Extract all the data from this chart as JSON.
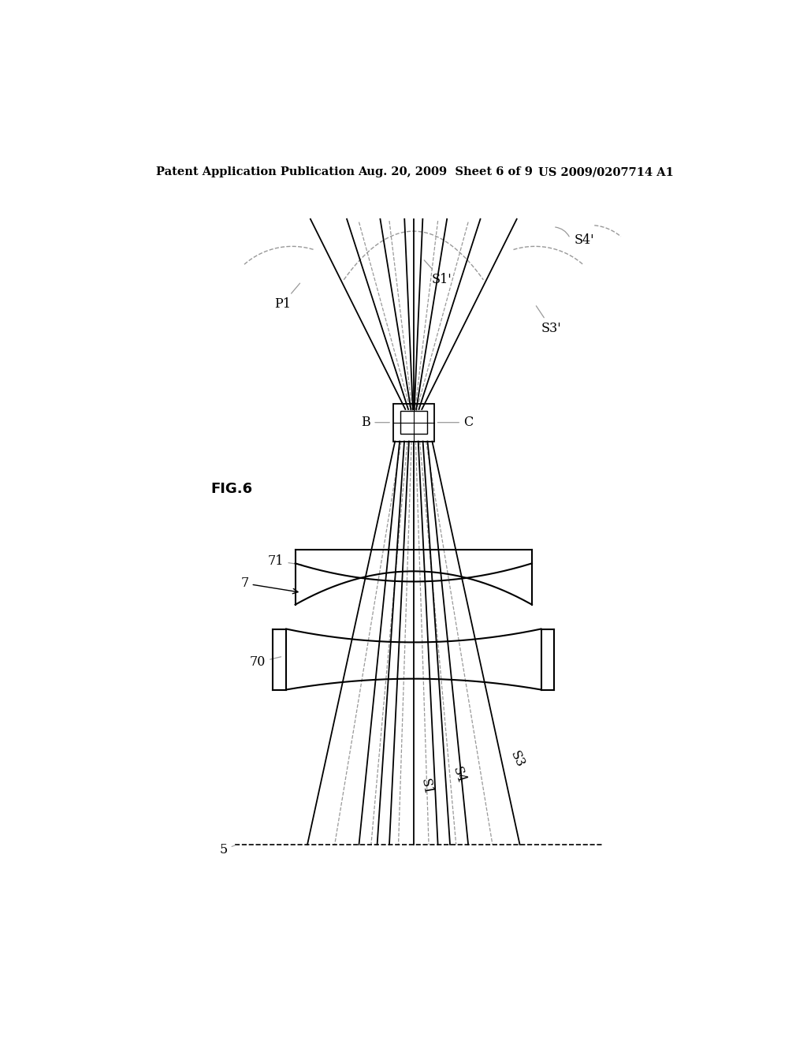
{
  "bg_color": "#ffffff",
  "line_color": "#000000",
  "dashed_color": "#999999",
  "header_left": "Patent Application Publication",
  "header_mid": "Aug. 20, 2009  Sheet 6 of 9",
  "header_right": "US 2009/0207714 A1",
  "fig_label": "FIG.6",
  "label_7": "7",
  "label_70": "70",
  "label_71": "71",
  "label_B": "B",
  "label_C": "C",
  "label_P1": "P1",
  "label_S1p": "S1'",
  "label_S3p": "S3'",
  "label_S4p": "S4'",
  "label_S1": "S1",
  "label_S3": "S3",
  "label_S4": "S4",
  "label_5": "5"
}
